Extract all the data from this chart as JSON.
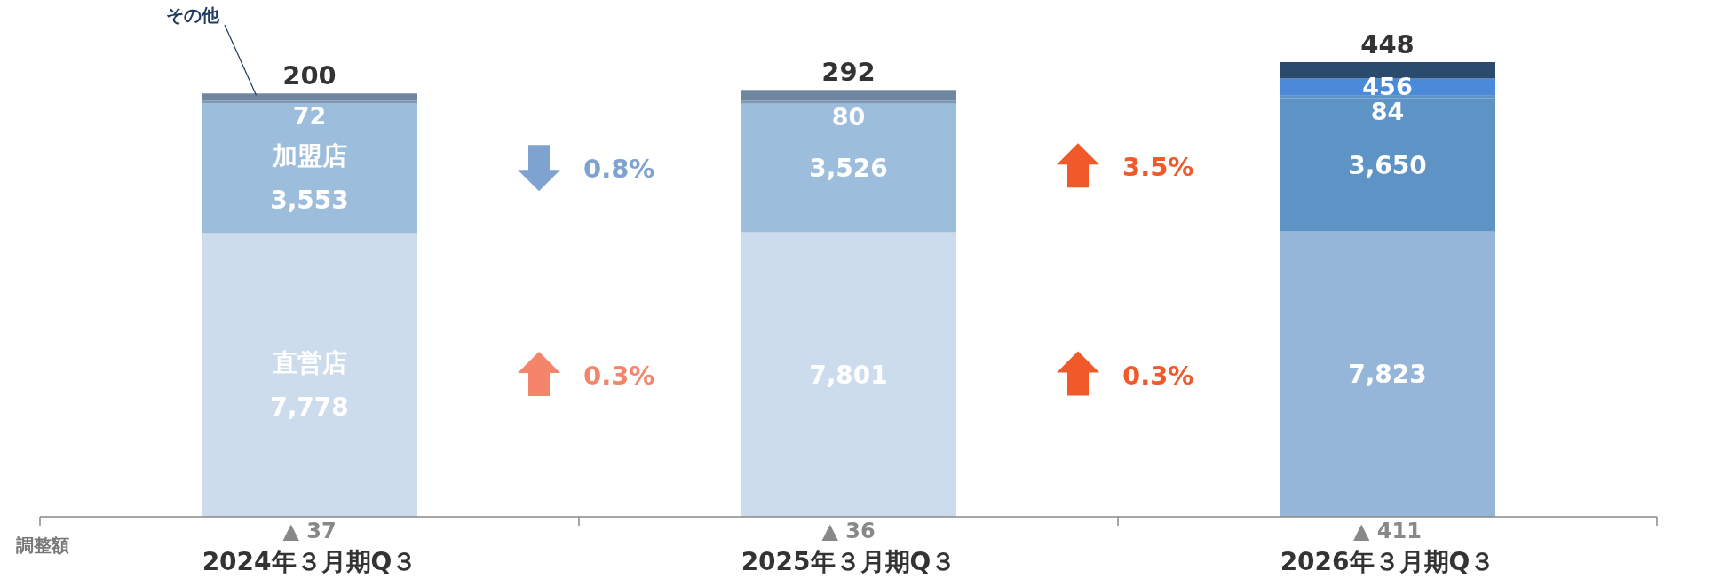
{
  "chart_data": {
    "type": "bar",
    "stacked": true,
    "categories": [
      "2024年３月期Q３",
      "2025年３月期Q３",
      "2026年３月期Q３"
    ],
    "series": [
      {
        "name": "直営店",
        "colors": [
          "#ccdcec",
          "#ccdcec",
          "#95b6d8"
        ],
        "values": [
          7778,
          7801,
          7823
        ],
        "value_labels": [
          "7,778",
          "7,801",
          "7,823"
        ]
      },
      {
        "name": "加盟店",
        "colors": [
          "#9dbddd",
          "#9dbddd",
          "#5e93c5"
        ],
        "values": [
          3553,
          3526,
          3650
        ],
        "value_labels": [
          "3,553",
          "3,526",
          "3,650"
        ]
      },
      {
        "colors": [
          "#7d98b5",
          "#7d98b5",
          "#5e93c5"
        ],
        "values": [
          72,
          80,
          84
        ],
        "value_labels": [
          "72",
          "80",
          "84"
        ]
      },
      {
        "colors": [
          null,
          null,
          "#4a8ad8"
        ],
        "values": [
          null,
          null,
          456
        ],
        "value_labels": [
          null,
          null,
          "456"
        ]
      },
      {
        "name": "その他",
        "colors": [
          "#6e86a0",
          "#6e86a0",
          "#2a4a6e"
        ],
        "values": [
          200,
          292,
          448
        ],
        "value_labels": [
          "200",
          "292",
          "448"
        ]
      }
    ],
    "annotations": [
      "0.8%",
      "0.3%",
      "3.5%",
      "0.3%",
      "調整額",
      "▲ 37",
      "▲ 36",
      "▲ 411"
    ]
  }
}
